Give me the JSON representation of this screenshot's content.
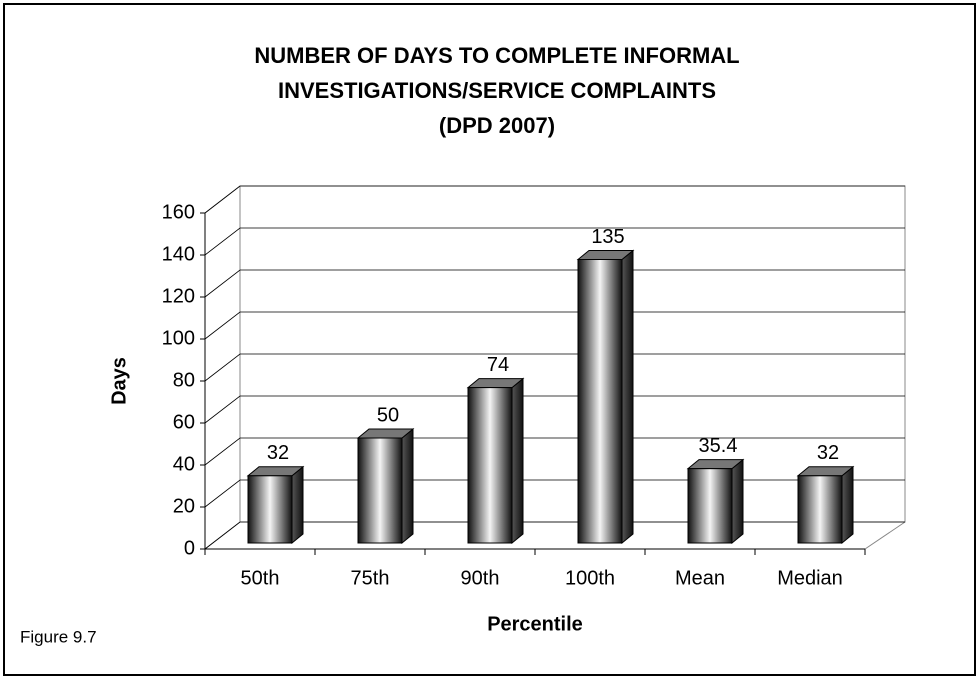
{
  "chart_data": {
    "type": "bar3d",
    "title": [
      "NUMBER OF DAYS TO COMPLETE INFORMAL",
      "INVESTIGATIONS/SERVICE COMPLAINTS",
      "(DPD 2007)"
    ],
    "x_label": "Percentile",
    "y_label": "Days",
    "annotation": "Figure 9.7",
    "categories": [
      "50th",
      "75th",
      "90th",
      "100th",
      "Mean",
      "Median"
    ],
    "values": [
      32,
      50,
      74,
      135,
      35.4,
      32
    ],
    "ylim": [
      0,
      160
    ],
    "yticks": [
      0,
      20,
      40,
      60,
      80,
      100,
      120,
      140,
      160
    ],
    "grid": true,
    "color": "#444444"
  }
}
